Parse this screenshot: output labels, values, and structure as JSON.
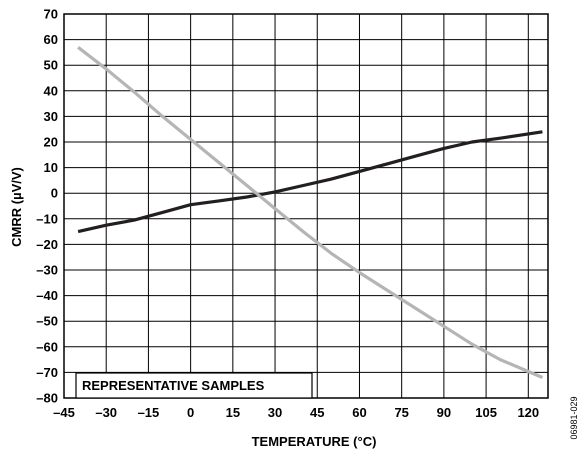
{
  "chart_data": {
    "type": "line",
    "xlabel": "TEMPERATURE (°C)",
    "ylabel": "CMRR (µV/V)",
    "xlim": [
      -45,
      127
    ],
    "ylim": [
      -80,
      70
    ],
    "xticks": [
      -45,
      -30,
      -15,
      0,
      15,
      30,
      45,
      60,
      75,
      90,
      105,
      120
    ],
    "xtick_labels": [
      "–45",
      "–30",
      "–15",
      "0",
      "15",
      "30",
      "45",
      "60",
      "75",
      "90",
      "105",
      "120"
    ],
    "yticks": [
      70,
      60,
      50,
      40,
      30,
      20,
      10,
      0,
      -10,
      -20,
      -30,
      -40,
      -50,
      -60,
      -70,
      -80
    ],
    "ytick_labels": [
      "70",
      "60",
      "50",
      "40",
      "30",
      "20",
      "10",
      "0",
      "–10",
      "–20",
      "–30",
      "–40",
      "–50",
      "–60",
      "–70",
      "–80"
    ],
    "grid": true,
    "series": [
      {
        "color": "#231f20",
        "x": [
          -40,
          -30,
          -20,
          -10,
          0,
          10,
          20,
          30,
          40,
          50,
          60,
          70,
          80,
          90,
          100,
          110,
          125
        ],
        "y": [
          -15,
          -12.5,
          -10.5,
          -7.5,
          -4.5,
          -3,
          -1.5,
          0.5,
          3,
          5.5,
          8.5,
          11.5,
          14.5,
          17.5,
          20,
          21.5,
          24
        ]
      },
      {
        "color": "#b5b5b5",
        "x": [
          -40,
          -30,
          -20,
          -10,
          0,
          10,
          20,
          30,
          40,
          50,
          60,
          70,
          80,
          90,
          100,
          110,
          125
        ],
        "y": [
          57,
          48.5,
          39.5,
          30,
          21,
          12,
          3,
          -6,
          -15,
          -23.5,
          -31,
          -38,
          -45,
          -52,
          -59,
          -65,
          -72
        ]
      }
    ],
    "annotation": "REPRESENTATIVE SAMPLES"
  },
  "figure_id": "06981-029"
}
